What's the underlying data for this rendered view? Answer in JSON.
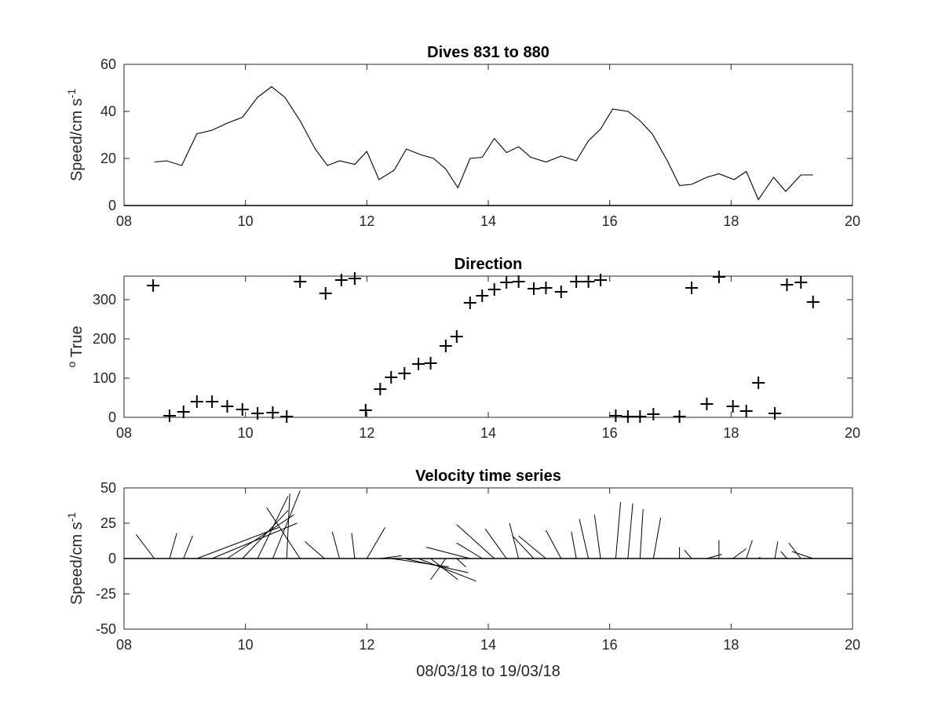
{
  "chart_data": [
    {
      "type": "line",
      "title": "Dives 831 to 880",
      "ylabel": "Speed/cm s",
      "ylabel_sup": "-1",
      "xlabel": "",
      "xlim": [
        8,
        20
      ],
      "ylim": [
        0,
        60
      ],
      "xticks": [
        8,
        10,
        12,
        14,
        16,
        18,
        20
      ],
      "xticklabels": [
        "08",
        "10",
        "12",
        "14",
        "16",
        "18",
        "20"
      ],
      "yticks": [
        0,
        20,
        40,
        60
      ],
      "yticklabels": [
        "0",
        "20",
        "40",
        "60"
      ],
      "x": [
        8.5,
        8.7,
        8.95,
        9.2,
        9.45,
        9.7,
        9.95,
        10.2,
        10.43,
        10.65,
        10.9,
        11.15,
        11.35,
        11.55,
        11.8,
        12.0,
        12.2,
        12.45,
        12.65,
        12.9,
        13.1,
        13.3,
        13.5,
        13.7,
        13.9,
        14.1,
        14.3,
        14.5,
        14.7,
        14.95,
        15.2,
        15.45,
        15.65,
        15.85,
        16.05,
        16.3,
        16.5,
        16.7,
        16.95,
        17.15,
        17.35,
        17.6,
        17.8,
        18.05,
        18.25,
        18.45,
        18.7,
        18.9,
        19.15,
        19.35
      ],
      "y": [
        18.5,
        19,
        17,
        30.5,
        32,
        35,
        37.5,
        46,
        50.5,
        46,
        36,
        24,
        17,
        19,
        17.5,
        23,
        11,
        15,
        24,
        21.5,
        20,
        15.5,
        7.5,
        20,
        20.5,
        28.5,
        22.5,
        25,
        20.5,
        18.5,
        21,
        19,
        27.5,
        32.5,
        41,
        40,
        36,
        30.5,
        19,
        8.5,
        9,
        12,
        13.5,
        11,
        14.5,
        2.5,
        12,
        6,
        13,
        13
      ]
    },
    {
      "type": "scatter",
      "title": "Direction",
      "ylabel": "True",
      "ylabel_sup": "o",
      "xlabel": "",
      "xlim": [
        8,
        20
      ],
      "ylim": [
        0,
        360
      ],
      "xticks": [
        8,
        10,
        12,
        14,
        16,
        18,
        20
      ],
      "xticklabels": [
        "08",
        "10",
        "12",
        "14",
        "16",
        "18",
        "20"
      ],
      "yticks": [
        0,
        100,
        200,
        300
      ],
      "yticklabels": [
        "0",
        "100",
        "200",
        "300"
      ],
      "x": [
        8.48,
        8.75,
        8.98,
        9.2,
        9.45,
        9.7,
        9.95,
        10.2,
        10.45,
        10.68,
        10.9,
        11.32,
        11.58,
        11.8,
        11.98,
        12.22,
        12.4,
        12.62,
        12.85,
        13.05,
        13.3,
        13.48,
        13.7,
        13.9,
        14.1,
        14.3,
        14.5,
        14.75,
        14.95,
        15.2,
        15.45,
        15.65,
        15.85,
        16.1,
        16.3,
        16.5,
        16.72,
        17.15,
        17.35,
        17.6,
        17.8,
        18.03,
        18.25,
        18.45,
        18.72,
        18.92,
        19.15,
        19.35
      ],
      "y": [
        336,
        4,
        14,
        40,
        40,
        28,
        20,
        10,
        12,
        2,
        346,
        316,
        350,
        354,
        18,
        72,
        102,
        112,
        136,
        138,
        182,
        206,
        292,
        310,
        326,
        344,
        346,
        328,
        330,
        320,
        346,
        346,
        350,
        4,
        2,
        2,
        8,
        2,
        330,
        34,
        358,
        28,
        16,
        88,
        10,
        338,
        344,
        294
      ]
    },
    {
      "type": "line",
      "subtype": "stick",
      "title": "Velocity time series",
      "ylabel": "Speed/cm s",
      "ylabel_sup": "-1",
      "xlabel": "08/03/18 to 19/03/18",
      "xlim": [
        8,
        20
      ],
      "ylim": [
        -50,
        50
      ],
      "xticks": [
        8,
        10,
        12,
        14,
        16,
        18,
        20
      ],
      "xticklabels": [
        "08",
        "10",
        "12",
        "14",
        "16",
        "18",
        "20"
      ],
      "yticks": [
        -50,
        -25,
        0,
        25,
        50
      ],
      "yticklabels": [
        "-50",
        "-25",
        "0",
        "25",
        "50"
      ],
      "sticks": [
        {
          "x": 8.5,
          "dx": -0.3,
          "dy": 17
        },
        {
          "x": 8.75,
          "dx": 0.12,
          "dy": 18
        },
        {
          "x": 8.98,
          "dx": 0.15,
          "dy": 16
        },
        {
          "x": 9.2,
          "dx": 1.35,
          "dy": 22
        },
        {
          "x": 9.45,
          "dx": 1.4,
          "dy": 25
        },
        {
          "x": 9.7,
          "dx": 1.1,
          "dy": 31
        },
        {
          "x": 9.95,
          "dx": 0.75,
          "dy": 34
        },
        {
          "x": 10.2,
          "dx": 0.5,
          "dy": 44
        },
        {
          "x": 10.45,
          "dx": 0.45,
          "dy": 48
        },
        {
          "x": 10.68,
          "dx": 0.05,
          "dy": 46
        },
        {
          "x": 10.9,
          "dx": -0.55,
          "dy": 36
        },
        {
          "x": 11.3,
          "dx": -0.32,
          "dy": 12
        },
        {
          "x": 11.55,
          "dx": -0.12,
          "dy": 19
        },
        {
          "x": 11.8,
          "dx": -0.05,
          "dy": 18
        },
        {
          "x": 12.0,
          "dx": 0.3,
          "dy": 22
        },
        {
          "x": 12.22,
          "dx": 0.35,
          "dy": 2
        },
        {
          "x": 12.4,
          "dx": 0.95,
          "dy": -6
        },
        {
          "x": 12.62,
          "dx": 1.05,
          "dy": -10
        },
        {
          "x": 12.85,
          "dx": 0.95,
          "dy": -16
        },
        {
          "x": 13.05,
          "dx": 0.45,
          "dy": -15
        },
        {
          "x": 13.3,
          "dx": -0.25,
          "dy": -15
        },
        {
          "x": 13.48,
          "dx": 0.15,
          "dy": -6
        },
        {
          "x": 13.7,
          "dx": -0.72,
          "dy": 8
        },
        {
          "x": 13.9,
          "dx": -0.42,
          "dy": 11
        },
        {
          "x": 14.1,
          "dx": -0.62,
          "dy": 24
        },
        {
          "x": 14.3,
          "dx": -0.35,
          "dy": 21
        },
        {
          "x": 14.5,
          "dx": -0.15,
          "dy": 25
        },
        {
          "x": 14.75,
          "dx": -0.35,
          "dy": 16
        },
        {
          "x": 14.95,
          "dx": -0.45,
          "dy": 16
        },
        {
          "x": 15.2,
          "dx": -0.25,
          "dy": 20
        },
        {
          "x": 15.45,
          "dx": -0.08,
          "dy": 19
        },
        {
          "x": 15.65,
          "dx": -0.15,
          "dy": 28
        },
        {
          "x": 15.85,
          "dx": -0.1,
          "dy": 31
        },
        {
          "x": 16.1,
          "dx": 0.08,
          "dy": 40
        },
        {
          "x": 16.3,
          "dx": 0.08,
          "dy": 39
        },
        {
          "x": 16.5,
          "dx": 0.05,
          "dy": 35
        },
        {
          "x": 16.72,
          "dx": 0.12,
          "dy": 29
        },
        {
          "x": 17.15,
          "dx": 0.0,
          "dy": 8
        },
        {
          "x": 17.35,
          "dx": -0.12,
          "dy": 6
        },
        {
          "x": 17.6,
          "dx": 0.25,
          "dy": 3
        },
        {
          "x": 17.8,
          "dx": 0.0,
          "dy": 13
        },
        {
          "x": 18.03,
          "dx": 0.22,
          "dy": 7
        },
        {
          "x": 18.25,
          "dx": 0.1,
          "dy": 13
        },
        {
          "x": 18.45,
          "dx": 0.03,
          "dy": 1
        },
        {
          "x": 18.72,
          "dx": 0.05,
          "dy": 12
        },
        {
          "x": 18.92,
          "dx": -0.1,
          "dy": 5
        },
        {
          "x": 19.15,
          "dx": -0.2,
          "dy": 11
        },
        {
          "x": 19.35,
          "dx": -0.35,
          "dy": 5
        }
      ]
    }
  ]
}
